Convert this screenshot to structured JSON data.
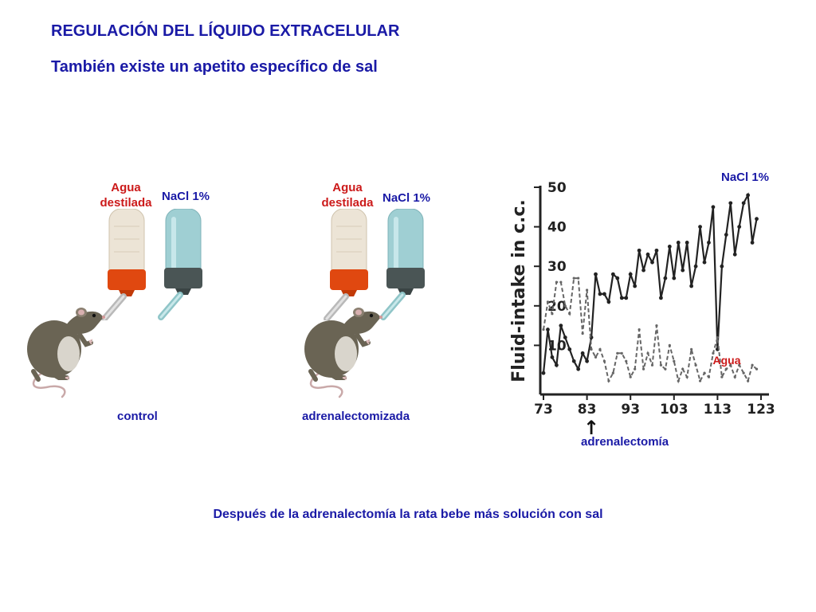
{
  "title": "REGULACIÓN DEL LÍQUIDO EXTRACELULAR",
  "subtitle": "También existe un apetito específico de sal",
  "panels": {
    "control": {
      "water_label_line1": "Agua",
      "water_label_line2": "destilada",
      "saline_label": "NaCl 1%",
      "caption": "control"
    },
    "adrenalectomized": {
      "water_label_line1": "Agua",
      "water_label_line2": "destilada",
      "saline_label": "NaCl 1%",
      "caption": "adrenalectomizada"
    }
  },
  "chart": {
    "ylabel": "Fluid-intake in c.c.",
    "yticks": [
      "10",
      "20",
      "30",
      "40",
      "50"
    ],
    "xticks": [
      "73",
      "83",
      "93",
      "103",
      "113",
      "123"
    ],
    "series_labels": {
      "nacl": "NaCl 1%",
      "water": "Agua"
    },
    "arrow_glyph": "↑",
    "annotation": "adrenalectomía"
  },
  "chart_data": {
    "type": "line",
    "xlabel": "",
    "ylabel": "Fluid-intake in c.c.",
    "xlim": [
      73,
      123
    ],
    "ylim": [
      0,
      50
    ],
    "event": {
      "x": 83,
      "label": "adrenalectomía"
    },
    "series": [
      {
        "name": "NaCl 1%",
        "style": "solid",
        "x": [
          73,
          74,
          75,
          76,
          77,
          78,
          79,
          80,
          81,
          82,
          83,
          84,
          85,
          86,
          87,
          88,
          89,
          90,
          91,
          92,
          93,
          94,
          95,
          96,
          97,
          98,
          99,
          100,
          101,
          102,
          103,
          104,
          105,
          106,
          107,
          108,
          109,
          110,
          111,
          112,
          113,
          114,
          115,
          116,
          117,
          118,
          119,
          120,
          121,
          122
        ],
        "values": [
          3,
          14,
          7,
          5,
          15,
          12,
          9,
          6,
          4,
          8,
          6,
          12,
          28,
          23,
          23,
          21,
          28,
          27,
          22,
          22,
          28,
          25,
          34,
          29,
          33,
          31,
          34,
          22,
          27,
          35,
          27,
          36,
          29,
          36,
          25,
          30,
          40,
          31,
          36,
          45,
          9,
          30,
          38,
          46,
          33,
          40,
          46,
          48,
          36,
          42
        ]
      },
      {
        "name": "Agua",
        "style": "dashed",
        "x": [
          73,
          74,
          75,
          76,
          77,
          78,
          79,
          80,
          81,
          82,
          83,
          84,
          85,
          86,
          87,
          88,
          89,
          90,
          91,
          92,
          93,
          94,
          95,
          96,
          97,
          98,
          99,
          100,
          101,
          102,
          103,
          104,
          105,
          106,
          107,
          108,
          109,
          110,
          111,
          112,
          113,
          114,
          115,
          116,
          117,
          118,
          119,
          120,
          121,
          122
        ],
        "values": [
          14,
          21,
          18,
          26,
          26,
          20,
          18,
          27,
          27,
          13,
          24,
          9,
          7,
          9,
          6,
          1,
          3,
          8,
          8,
          6,
          2,
          4,
          14,
          4,
          8,
          5,
          15,
          5,
          4,
          10,
          6,
          1,
          4,
          2,
          9,
          5,
          1,
          3,
          2,
          8,
          12,
          2,
          4,
          5,
          2,
          5,
          3,
          1,
          5,
          4
        ]
      }
    ]
  },
  "conclusion": "Después de la adrenalectomía la rata bebe más solución con sal",
  "colors": {
    "heading": "#1a1aa6",
    "label_red": "#cc1a1a",
    "ink": "#222222",
    "water_cap": "#e04810",
    "saline_cap": "#4a5555",
    "water_bottle": "#ece4d6",
    "saline_bottle": "#9fcfd3",
    "rat_body": "#6a6454"
  },
  "icons": [
    "water-bottle-icon",
    "saline-bottle-icon",
    "rat-icon"
  ]
}
